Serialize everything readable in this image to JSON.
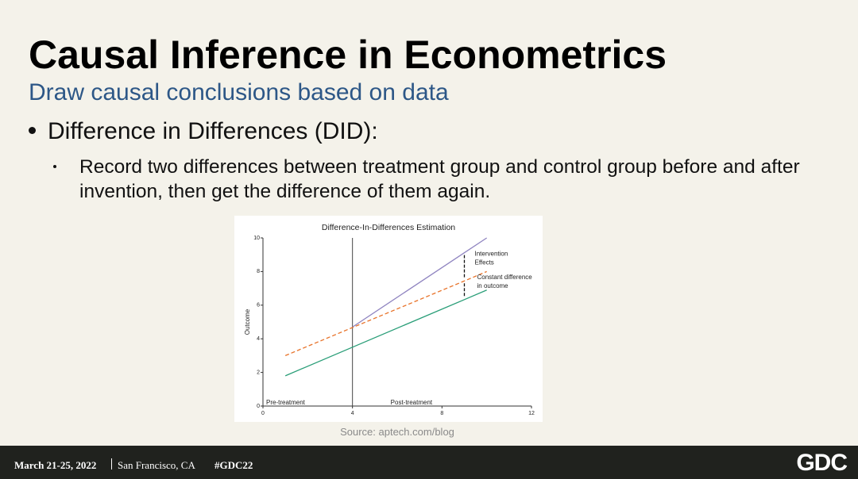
{
  "slide": {
    "title": "Causal Inference in Econometrics",
    "subtitle": "Draw causal conclusions based on data",
    "bullet": "Difference in Differences (DID):",
    "sub_bullet": "Record two differences between treatment group and control group before and after invention, then get the difference of them again.",
    "source": "Source: aptech.com/blog"
  },
  "footer": {
    "date": "March 21-25, 2022",
    "location": "San Francisco, CA",
    "hashtag": "#GDC22",
    "logo": "GDC"
  },
  "chart_data": {
    "type": "line",
    "title": "Difference-In-Differences Estimation",
    "y_label": "Outcome",
    "x": [
      1,
      4,
      9,
      10
    ],
    "series": [
      {
        "color": "#8f84c0",
        "values": [
          null,
          4.7,
          9.12,
          10
        ],
        "dashed": false
      },
      {
        "color": "#e8732a",
        "values": [
          3,
          4.67,
          7.44,
          8
        ],
        "dashed": true
      },
      {
        "color": "#2a9e78",
        "values": [
          1.8,
          3.5,
          6.33,
          6.9
        ],
        "dashed": false
      }
    ],
    "xlim": [
      0,
      12
    ],
    "xticks": [
      0,
      4,
      8,
      12
    ],
    "ylim": [
      0,
      10
    ],
    "yticks": [
      0,
      2,
      4,
      6,
      8,
      10
    ],
    "intervention_x": 4,
    "annotations": [
      {
        "lines": [
          "Intervention",
          "Effects"
        ],
        "between": [
          0,
          1
        ],
        "index": 2
      },
      {
        "lines": [
          "Constant difference",
          "in outcome"
        ],
        "between": [
          1,
          2
        ],
        "index": 2
      }
    ],
    "regions": [
      "Pre-treatment",
      "Post-treatment"
    ]
  }
}
